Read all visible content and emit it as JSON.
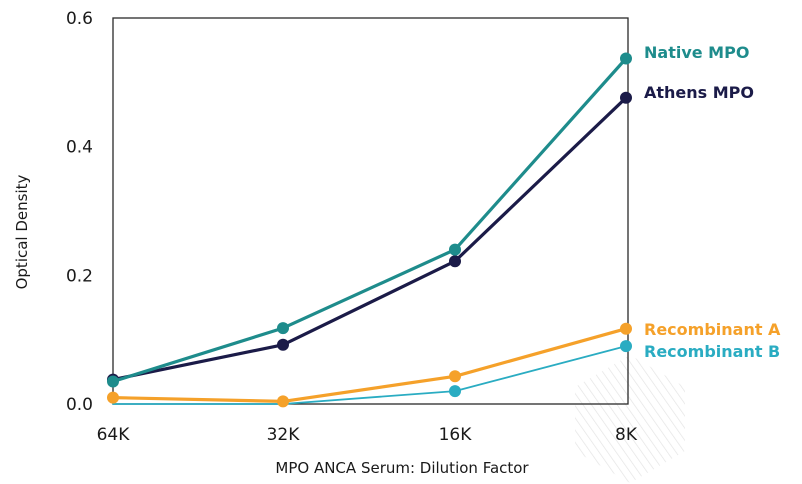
{
  "chart_data": {
    "type": "line",
    "title": "",
    "xlabel": "MPO ANCA Serum: Dilution Factor",
    "ylabel": "Optical Density",
    "categories": [
      "64K",
      "32K",
      "16K",
      "8K"
    ],
    "ylim": [
      0,
      0.6
    ],
    "yticks": [
      "0.0",
      "0.2",
      "0.4",
      "0.6"
    ],
    "grid": false,
    "legend_placement": "right, inline at series end",
    "series": [
      {
        "name": "Native MPO",
        "color": "#1e8c8c",
        "values": [
          0.035,
          0.118,
          0.24,
          0.537
        ]
      },
      {
        "name": "Athens MPO",
        "color": "#1b1b48",
        "values": [
          0.038,
          0.092,
          0.222,
          0.476
        ]
      },
      {
        "name": "Recombinant A",
        "color": "#f5a12a",
        "values": [
          0.01,
          0.004,
          0.043,
          0.117
        ]
      },
      {
        "name": "Recombinant B",
        "color": "#2aacc2",
        "values": [
          0.0,
          0.0,
          0.02,
          0.09
        ]
      }
    ]
  }
}
